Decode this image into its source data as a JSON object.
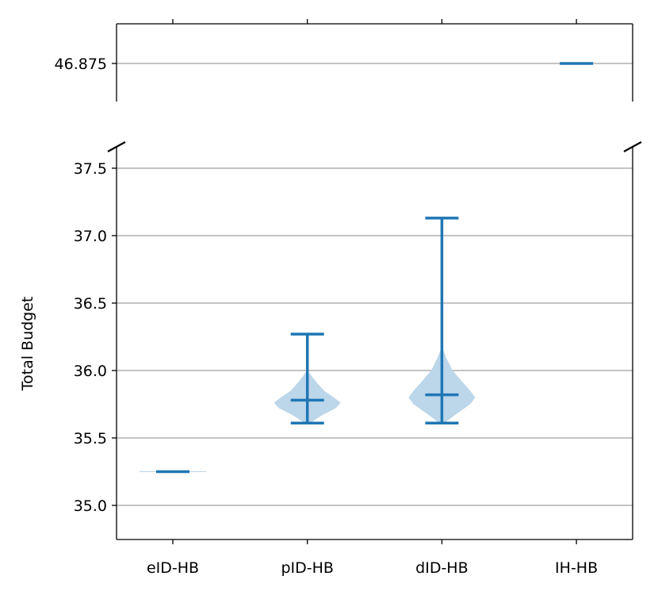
{
  "chart_data": {
    "type": "violin",
    "ylabel": "Total Budget",
    "categories": [
      "eID-HB",
      "pID-HB",
      "dID-HB",
      "IH-HB"
    ],
    "broken_y_axis": true,
    "top_panel": {
      "ylim": [
        46.8,
        46.95
      ],
      "yticks": [
        "46.875"
      ],
      "ytick_values": [
        46.875
      ]
    },
    "bottom_panel": {
      "ylim": [
        34.75,
        37.66
      ],
      "yticks": [
        "35.0",
        "35.5",
        "36.0",
        "36.5",
        "37.0",
        "37.5"
      ],
      "ytick_values": [
        35.0,
        35.5,
        36.0,
        36.5,
        37.0,
        37.5
      ]
    },
    "grid": "y",
    "series": [
      {
        "category": "eID-HB",
        "min": 35.25,
        "max": 35.25,
        "mean": 35.25,
        "kde": []
      },
      {
        "category": "pID-HB",
        "min": 35.61,
        "max": 36.27,
        "mean": 35.78,
        "kde": [
          [
            36.0,
            0
          ],
          [
            35.92,
            0.25
          ],
          [
            35.85,
            0.5
          ],
          [
            35.8,
            0.8
          ],
          [
            35.76,
            1.0
          ],
          [
            35.72,
            0.85
          ],
          [
            35.67,
            0.45
          ],
          [
            35.63,
            0.2
          ],
          [
            35.61,
            0.08
          ]
        ]
      },
      {
        "category": "dID-HB",
        "min": 35.61,
        "max": 37.13,
        "mean": 35.82,
        "kde": [
          [
            36.18,
            0
          ],
          [
            36.1,
            0.12
          ],
          [
            36.0,
            0.32
          ],
          [
            35.92,
            0.6
          ],
          [
            35.85,
            0.85
          ],
          [
            35.8,
            1.0
          ],
          [
            35.75,
            0.85
          ],
          [
            35.68,
            0.45
          ],
          [
            35.63,
            0.18
          ],
          [
            35.61,
            0.08
          ]
        ]
      },
      {
        "category": "IH-HB",
        "min": 46.875,
        "max": 46.875,
        "mean": 46.875,
        "kde": []
      }
    ],
    "colors": {
      "line": "#1f77b4",
      "fill": "#bcd6ea",
      "grid": "#b0b0b0"
    }
  }
}
